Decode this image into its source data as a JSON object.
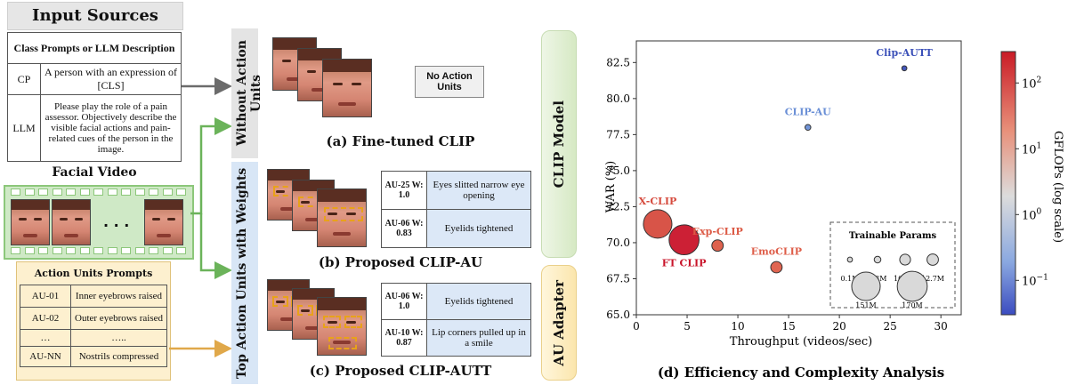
{
  "input_sources": {
    "title": "Input Sources",
    "class_prompts_header": "Class Prompts or LLM Description",
    "rows": [
      {
        "key": "CP",
        "text": "A person with an expression of [CLS]"
      },
      {
        "key": "LLM",
        "text": "Please play the role of a pain assessor. Objectively describe the visible facial actions and pain-related cues of the person in the image."
      }
    ],
    "facial_video_title": "Facial Video",
    "ellipsis": ". . .",
    "au_prompts_title": "Action Units Prompts",
    "au_prompts": [
      {
        "key": "AU-01",
        "text": "Inner eyebrows raised"
      },
      {
        "key": "AU-02",
        "text": "Outer eyebrows raised"
      },
      {
        "key": "…",
        "text": "….."
      },
      {
        "key": "AU-NN",
        "text": "Nostrils compressed"
      }
    ]
  },
  "panels": {
    "a": {
      "side_label": "Without Action Units",
      "no_au": "No Action Units",
      "caption": "(a) Fine-tuned CLIP"
    },
    "b": {
      "side_label": "Top Action Units with Weights",
      "caption": "(b) Proposed CLIP-AU",
      "aus": [
        {
          "key": "AU-25 W: 1.0",
          "text": "Eyes slitted narrow eye opening"
        },
        {
          "key": "AU-06 W: 0.83",
          "text": "Eyelids tightened"
        }
      ]
    },
    "c": {
      "caption": "(c) Proposed CLIP-AUTT",
      "aus": [
        {
          "key": "AU-06 W: 1.0",
          "text": "Eyelids tightened"
        },
        {
          "key": "AU-10 W: 0.87",
          "text": "Lip corners pulled up in a smile"
        }
      ]
    },
    "clip_model": "CLIP Model",
    "au_adapter": "AU Adapter"
  },
  "chart_data": {
    "type": "scatter",
    "title": "(d) Efficiency and Complexity Analysis",
    "xlabel": "Throughput (videos/sec)",
    "ylabel": "WAR (%)",
    "xlim": [
      0,
      32
    ],
    "ylim": [
      65.0,
      84.0
    ],
    "xticks": [
      0,
      5,
      10,
      15,
      20,
      25,
      30
    ],
    "yticks": [
      65.0,
      67.5,
      70.0,
      72.5,
      75.0,
      77.5,
      80.0,
      82.5
    ],
    "grid": true,
    "colorbar": {
      "label": "GFLOPs (log scale)",
      "scale": "log",
      "range": [
        0.03,
        300
      ],
      "ticks": [
        "10^2",
        "10^1",
        "10^0",
        "10^-1"
      ],
      "colors": [
        "#c91b26",
        "#e8907a",
        "#dcdcdc",
        "#8aa8e0",
        "#3b4cc0"
      ]
    },
    "points": [
      {
        "name": "Clip-AUTT",
        "x": 26.4,
        "y": 82.1,
        "params_M": 0.1,
        "gflops": 0.05,
        "color": "#3a4fb8"
      },
      {
        "name": "CLIP-AU",
        "x": 16.9,
        "y": 78.0,
        "params_M": 0.5,
        "gflops": 0.3,
        "color": "#6a8fd6"
      },
      {
        "name": "X-CLIP",
        "x": 2.1,
        "y": 71.3,
        "params_M": 151,
        "gflops": 140,
        "color": "#d64b3e"
      },
      {
        "name": "FT CLIP",
        "x": 4.7,
        "y": 70.2,
        "params_M": 170,
        "gflops": 230,
        "color": "#c9142a"
      },
      {
        "name": "Exp-CLIP",
        "x": 8.0,
        "y": 69.8,
        "params_M": 12.7,
        "gflops": 60,
        "color": "#dc5a45"
      },
      {
        "name": "EmoCLIP",
        "x": 13.8,
        "y": 68.3,
        "params_M": 12.7,
        "gflops": 70,
        "color": "#de5d48"
      }
    ],
    "legend": {
      "title": "Trainable Params",
      "placement": "lower-right",
      "sizes": [
        {
          "label": "0.1M",
          "v": 0.1
        },
        {
          "label": "1.3M",
          "v": 1.3
        },
        {
          "label": "10.5M",
          "v": 10.5
        },
        {
          "label": "12.7M",
          "v": 12.7
        },
        {
          "label": "151M",
          "v": 151
        },
        {
          "label": "170M",
          "v": 170
        }
      ]
    }
  },
  "colors": {
    "arrow_gray": "#6b6b6b",
    "arrow_green": "#6bb35a",
    "arrow_orange": "#e0a84a",
    "clip_model_bg": "#dcebc9",
    "au_adapter_bg": "#fbe7b3",
    "side_gray": "#e4e4e4",
    "side_blue": "#d8e6f6"
  }
}
